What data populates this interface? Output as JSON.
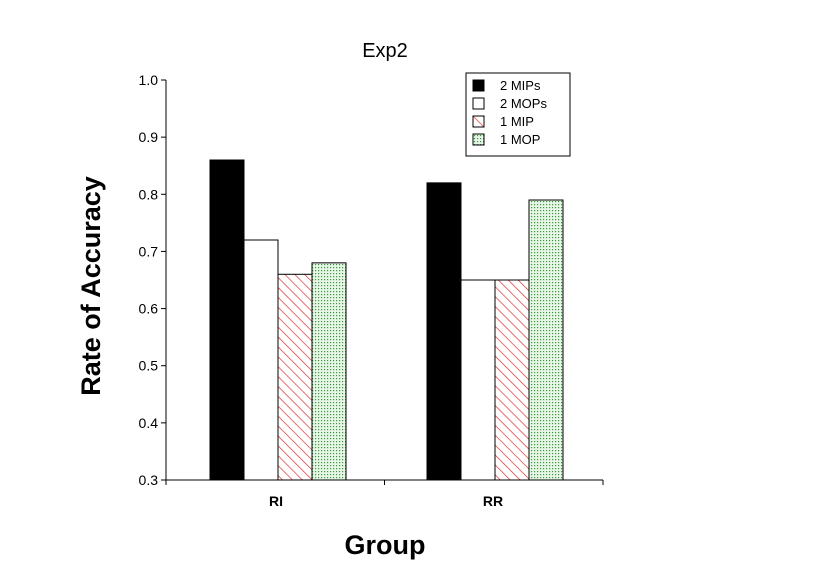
{
  "chart_data": {
    "type": "bar",
    "title": "Exp2",
    "xlabel": "Group",
    "ylabel": "Rate of Accuracy",
    "categories": [
      "RI",
      "RR"
    ],
    "series": [
      {
        "name": "2 MIPs",
        "values": [
          0.86,
          0.82
        ],
        "fill": "black"
      },
      {
        "name": "2 MOPs",
        "values": [
          0.72,
          0.65
        ],
        "fill": "white"
      },
      {
        "name": "1 MIP",
        "values": [
          0.66,
          0.65
        ],
        "fill": "hatch-red"
      },
      {
        "name": "1 MOP",
        "values": [
          0.68,
          0.79
        ],
        "fill": "dotted-green"
      }
    ],
    "ylim": [
      0.3,
      1.0
    ],
    "yticks": [
      "0.3",
      "0.4",
      "0.5",
      "0.6",
      "0.7",
      "0.8",
      "0.9",
      "1.0"
    ],
    "grid": false,
    "legend": "top-right",
    "colors": {
      "bar_border": "#000000",
      "hatch": "#e03030",
      "dot": "#3a9a3a",
      "dot_bg": "#e8f6e8"
    }
  }
}
